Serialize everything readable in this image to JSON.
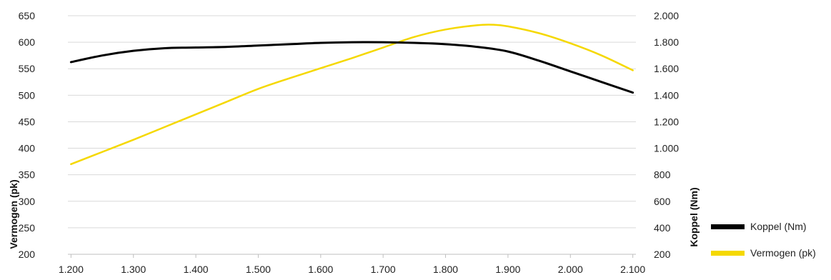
{
  "chart_data": {
    "type": "line",
    "title": "",
    "xlabel": "",
    "ylabel_left": "Vermogen (pk)",
    "ylabel_right": "Koppel (Nm)",
    "x_ticks": [
      "1.200",
      "1.300",
      "1.400",
      "1.500",
      "1.600",
      "1.700",
      "1.800",
      "1.900",
      "2.000",
      "2.100"
    ],
    "y_left_ticks": [
      "200",
      "250",
      "300",
      "350",
      "400",
      "450",
      "500",
      "550",
      "600",
      "650"
    ],
    "y_right_ticks": [
      "200",
      "400",
      "600",
      "800",
      "1.000",
      "1.200",
      "1.400",
      "1.600",
      "1.800",
      "2.000"
    ],
    "xlim": [
      1195,
      2105
    ],
    "ylim_left": [
      200,
      650
    ],
    "ylim_right": [
      200,
      2000
    ],
    "grid": true,
    "legend_position": "bottom-right",
    "series": [
      {
        "name": "Koppel (Nm)",
        "axis": "right",
        "color": "#000000",
        "x": [
          1200,
          1250,
          1300,
          1350,
          1400,
          1450,
          1500,
          1550,
          1600,
          1650,
          1700,
          1750,
          1800,
          1850,
          1900,
          1950,
          2000,
          2050,
          2100
        ],
        "y": [
          1650,
          1700,
          1735,
          1755,
          1760,
          1765,
          1775,
          1785,
          1795,
          1800,
          1800,
          1795,
          1785,
          1765,
          1730,
          1660,
          1580,
          1500,
          1420
        ]
      },
      {
        "name": "Vermogen (pk)",
        "axis": "left",
        "color": "#f5d800",
        "x": [
          1200,
          1250,
          1300,
          1350,
          1400,
          1450,
          1500,
          1550,
          1600,
          1650,
          1700,
          1750,
          1800,
          1850,
          1875,
          1900,
          1950,
          2000,
          2050,
          2100
        ],
        "y": [
          370,
          393,
          416,
          440,
          464,
          488,
          512,
          532,
          551,
          570,
          590,
          610,
          624,
          632,
          633,
          630,
          617,
          598,
          575,
          547
        ]
      }
    ]
  }
}
